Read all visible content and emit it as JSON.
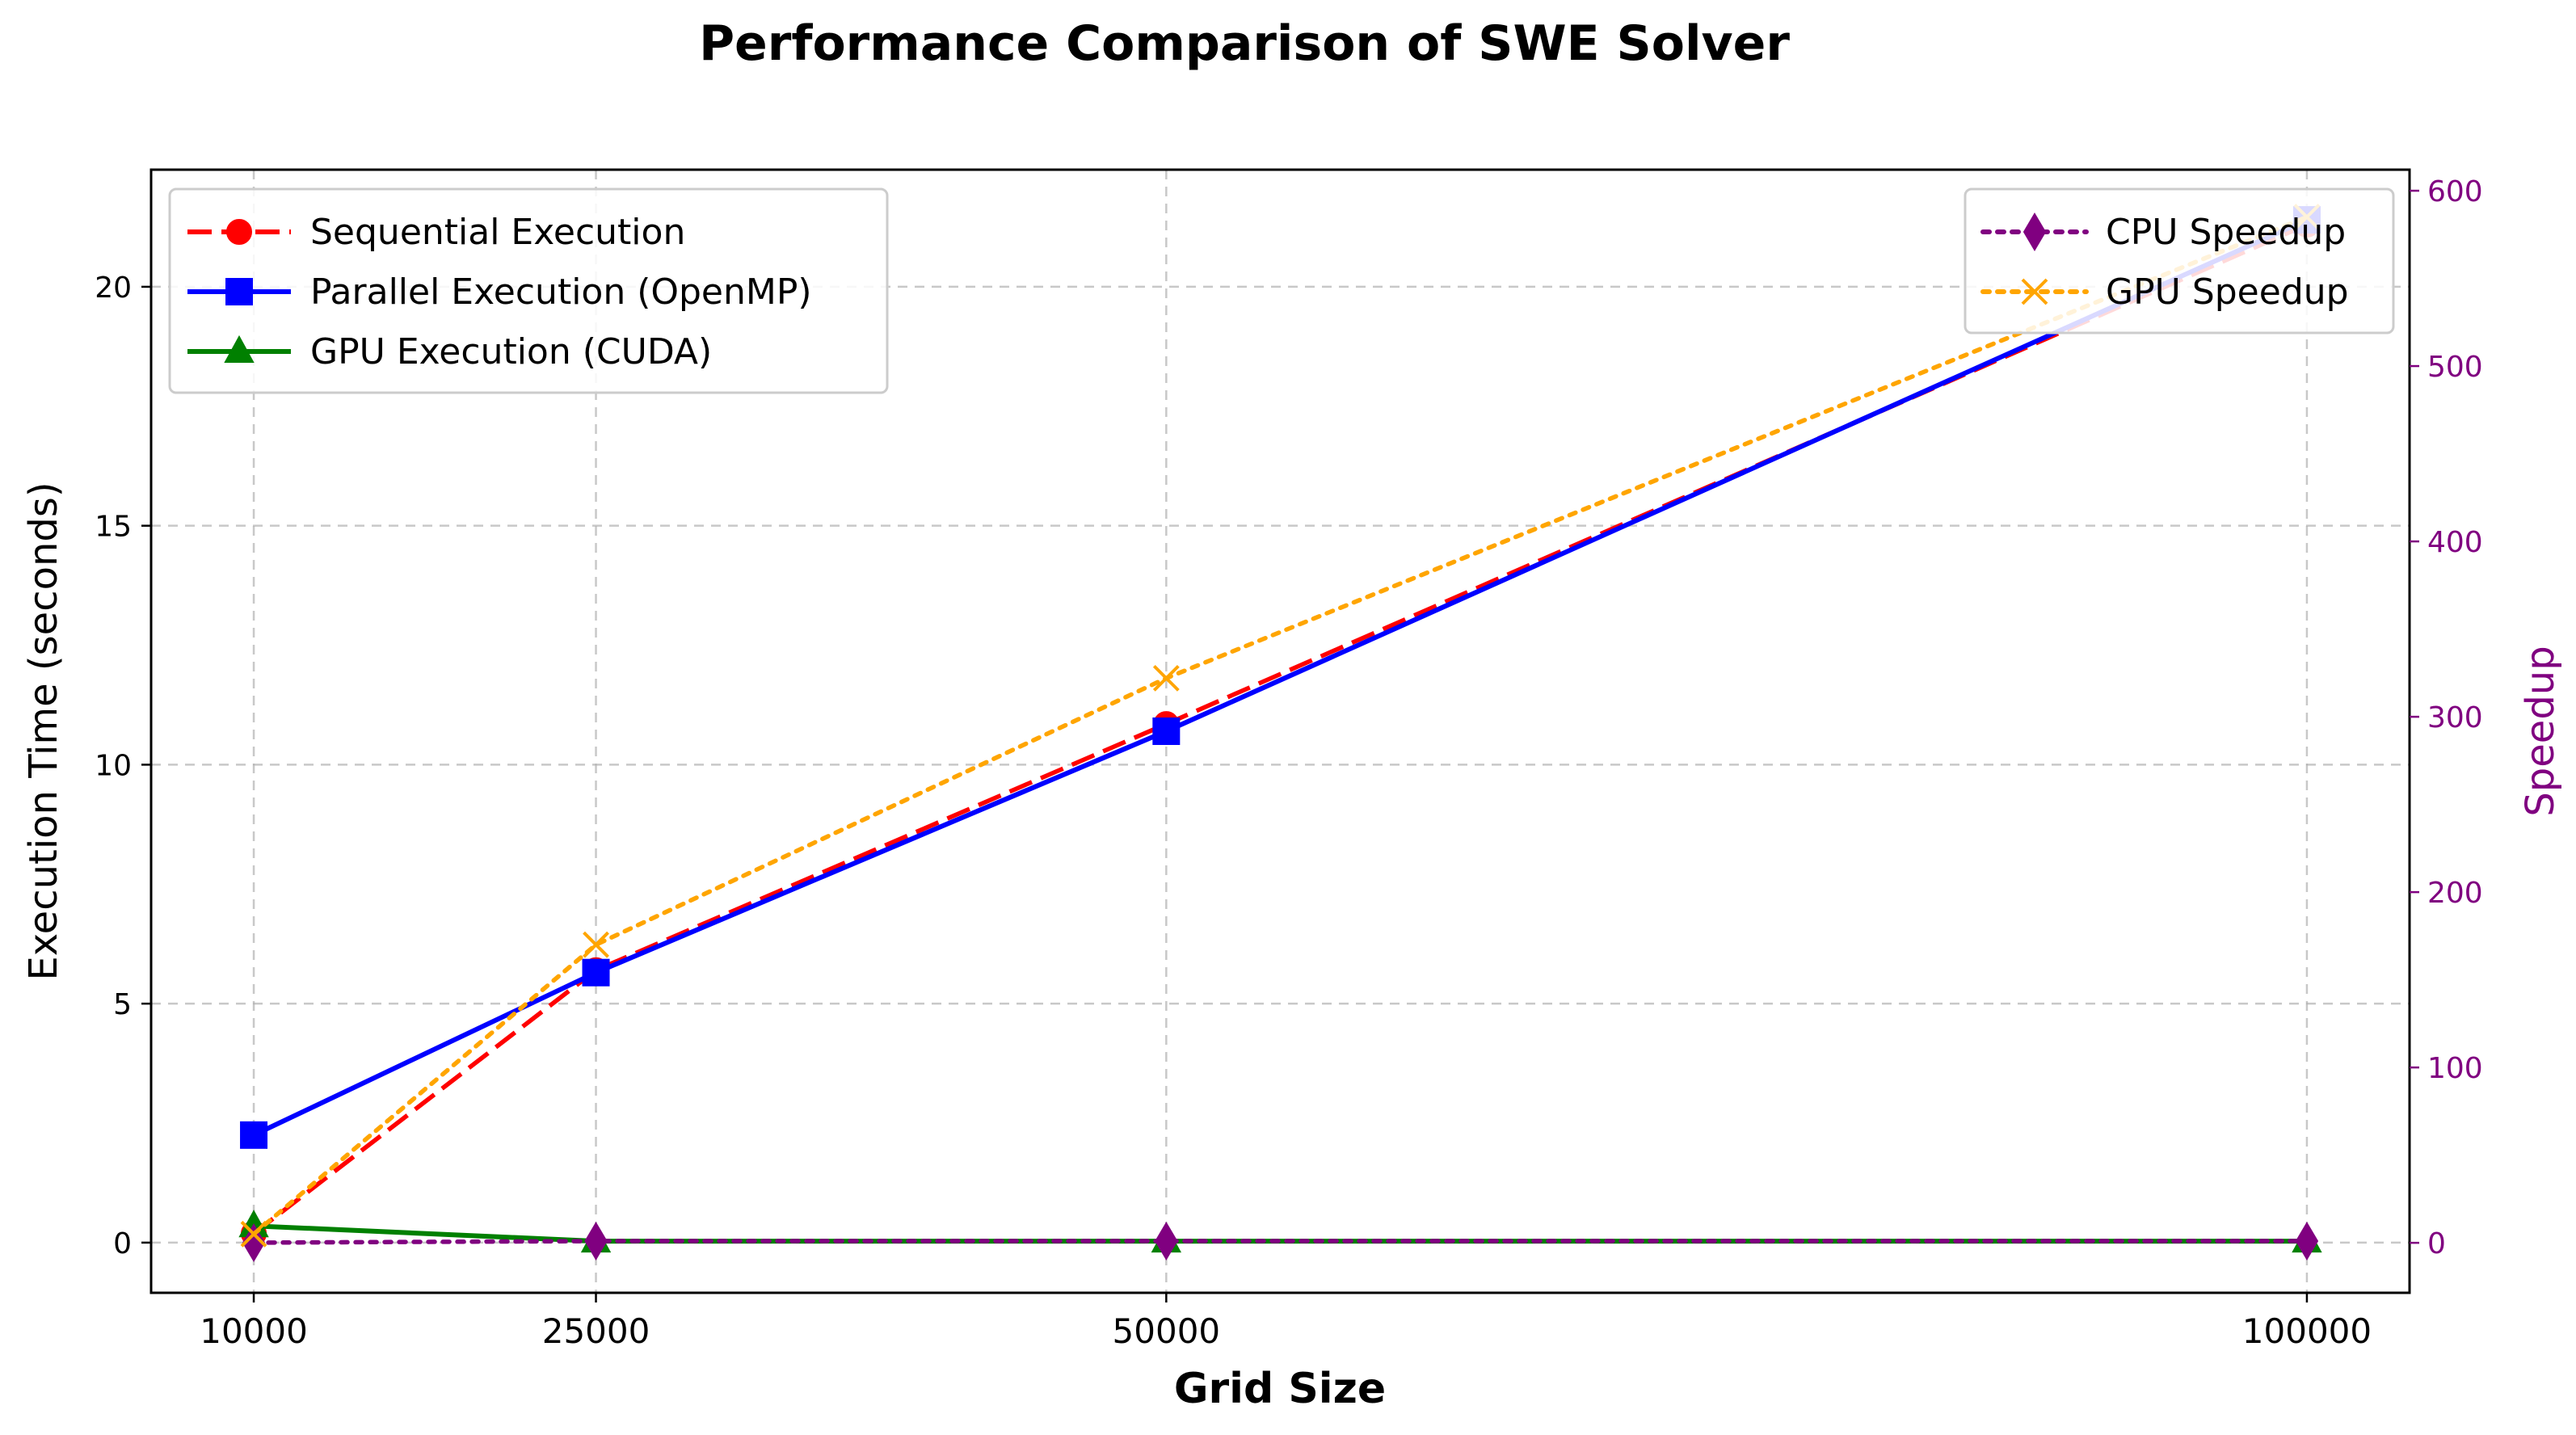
{
  "chart_data": {
    "type": "line",
    "title": "Performance Comparison of SWE Solver",
    "xlabel": "Grid Size",
    "ylabel": "Execution Time (seconds)",
    "ylabel_right": "Speedup",
    "x": [
      10000,
      25000,
      50000,
      100000
    ],
    "x_tick_labels": [
      "10000",
      "25000",
      "50000",
      "100000"
    ],
    "xlim": [
      5500,
      104500
    ],
    "ylim": [
      -1.05,
      22.45
    ],
    "ylim_right": [
      -28.5,
      612
    ],
    "y_ticks": [
      0,
      5,
      10,
      15,
      20
    ],
    "y_ticks_right": [
      0,
      100,
      200,
      300,
      400,
      500,
      600
    ],
    "right_axis_color": "#800080",
    "grid": true,
    "series": [
      {
        "name": "Sequential Execution",
        "axis": "left",
        "color": "#ff0000",
        "marker": "circle",
        "line": "dashed",
        "values": [
          0.19,
          5.7,
          10.85,
          21.3
        ]
      },
      {
        "name": "Parallel Execution (OpenMP)",
        "axis": "left",
        "color": "#0000ff",
        "marker": "square",
        "line": "solid",
        "values": [
          2.25,
          5.65,
          10.7,
          21.4
        ]
      },
      {
        "name": "GPU Execution (CUDA)",
        "axis": "left",
        "color": "#008000",
        "marker": "triangle",
        "line": "solid",
        "values": [
          0.35,
          0.03,
          0.03,
          0.03
        ]
      },
      {
        "name": "CPU Speedup",
        "axis": "right",
        "color": "#800080",
        "marker": "diamond",
        "line": "dotted",
        "values": [
          0.08,
          1.0,
          1.0,
          1.0
        ]
      },
      {
        "name": "GPU Speedup",
        "axis": "right",
        "color": "#ffa500",
        "marker": "x",
        "line": "dotted",
        "values": [
          5,
          170,
          322,
          585
        ]
      }
    ],
    "legend_left": {
      "placement": "upper-left",
      "entries": [
        "Sequential Execution",
        "Parallel Execution (OpenMP)",
        "GPU Execution (CUDA)"
      ]
    },
    "legend_right": {
      "placement": "upper-right",
      "entries": [
        "CPU Speedup",
        "GPU Speedup"
      ]
    }
  }
}
